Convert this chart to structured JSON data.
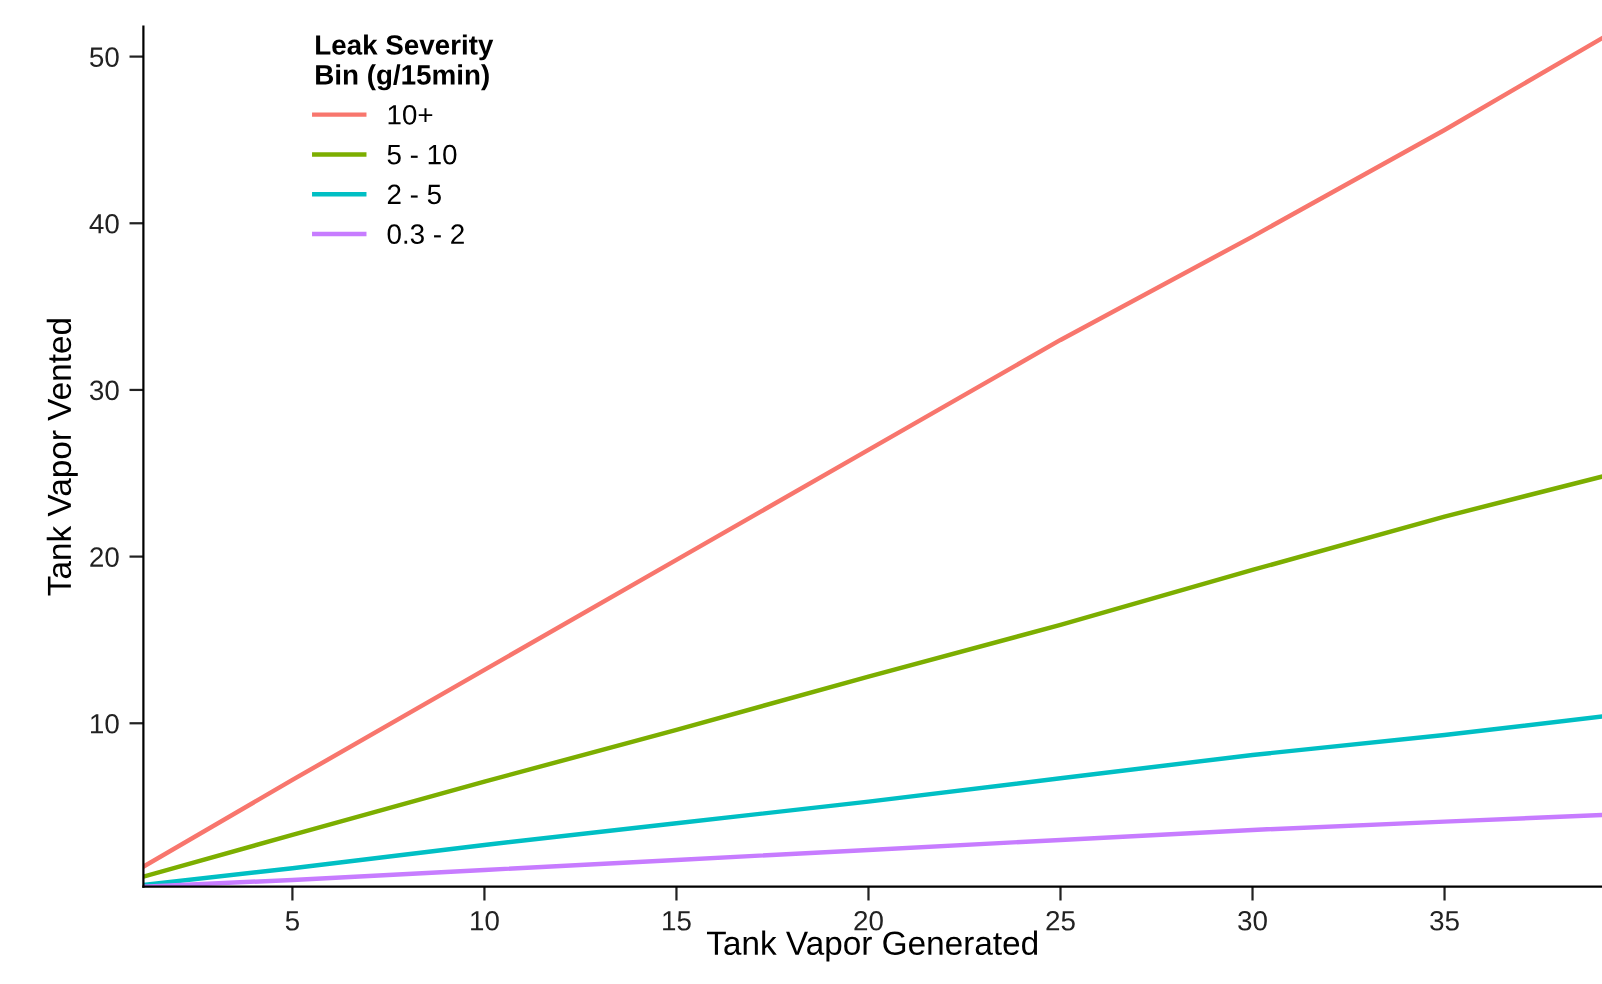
{
  "chart_data": {
    "type": "line",
    "xlabel": "Tank Vapor Generated",
    "ylabel": "Tank Vapor Vented",
    "legend_title": "Leak Severity\nBin (g/15min)",
    "x": [
      1.12,
      5,
      10,
      15,
      20,
      25,
      30,
      35,
      39.1
    ],
    "xlim": [
      1.12,
      39.1
    ],
    "ylim": [
      0.2,
      51.8
    ],
    "xticks": [
      5,
      10,
      15,
      20,
      25,
      30,
      35
    ],
    "yticks": [
      10,
      20,
      30,
      40,
      50
    ],
    "legend": "top left",
    "grid": false,
    "series": [
      {
        "name": "10+",
        "color": "#f8766d",
        "values": [
          1.4,
          6.6,
          13.2,
          19.8,
          26.4,
          33,
          39.2,
          45.6,
          51.1
        ]
      },
      {
        "name": "5 - 10",
        "color": "#7cae00",
        "values": [
          0.8,
          3.3,
          6.5,
          9.6,
          12.8,
          15.9,
          19.2,
          22.4,
          24.8
        ]
      },
      {
        "name": "2 - 5",
        "color": "#00bfc4",
        "values": [
          0.3,
          1.3,
          2.7,
          4.0,
          5.3,
          6.7,
          8.1,
          9.3,
          10.4
        ]
      },
      {
        "name": "0.3 - 2",
        "color": "#c77cff",
        "values": [
          0.2,
          0.6,
          1.2,
          1.8,
          2.4,
          3.0,
          3.6,
          4.1,
          4.5
        ]
      }
    ]
  }
}
